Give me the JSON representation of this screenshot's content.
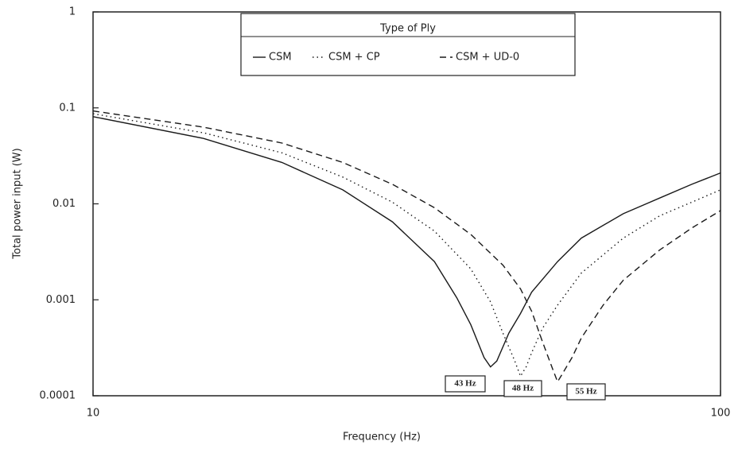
{
  "chart_data": {
    "type": "line",
    "xlabel": "Frequency (Hz)",
    "ylabel": "Total power input (W)",
    "xscale": "log",
    "yscale": "log",
    "xlim": [
      10,
      100
    ],
    "ylim": [
      0.0001,
      1
    ],
    "xticks": [
      10,
      100
    ],
    "yticks": [
      0.0001,
      0.001,
      0.01,
      0.1,
      1
    ],
    "legend_title": "Type of Ply",
    "legend": "upper center",
    "series": [
      {
        "name": "CSM",
        "color": "#1a1a1a",
        "style": "solid",
        "x": [
          10,
          15,
          20,
          25,
          30,
          35,
          38,
          40,
          42,
          43,
          44,
          46,
          48,
          50,
          55,
          60,
          70,
          80,
          90,
          100
        ],
        "values": [
          0.081,
          0.048,
          0.027,
          0.014,
          0.0065,
          0.0025,
          0.00105,
          0.00055,
          0.00025,
          0.0002,
          0.00023,
          0.00045,
          0.00072,
          0.0012,
          0.0025,
          0.0044,
          0.0079,
          0.0115,
          0.016,
          0.021
        ]
      },
      {
        "name": "CSM + CP",
        "color": "#1a1a1a",
        "style": "dotted",
        "x": [
          10,
          15,
          20,
          25,
          30,
          35,
          40,
          43,
          45,
          47,
          48,
          49,
          50,
          52,
          55,
          60,
          70,
          80,
          90,
          100
        ],
        "values": [
          0.087,
          0.055,
          0.034,
          0.019,
          0.0104,
          0.0052,
          0.0021,
          0.00095,
          0.00045,
          0.00023,
          0.00016,
          0.0002,
          0.00028,
          0.0005,
          0.00088,
          0.0019,
          0.0044,
          0.0075,
          0.0104,
          0.014
        ]
      },
      {
        "name": "CSM + UD-0",
        "color": "#1a1a1a",
        "style": "dashed",
        "x": [
          10,
          15,
          20,
          25,
          30,
          35,
          40,
          45,
          48,
          50,
          52,
          54,
          55,
          56,
          58,
          60,
          65,
          70,
          80,
          90,
          100
        ],
        "values": [
          0.093,
          0.063,
          0.043,
          0.027,
          0.016,
          0.0091,
          0.0048,
          0.0023,
          0.0013,
          0.00076,
          0.00037,
          0.00019,
          0.00014,
          0.00017,
          0.00025,
          0.0004,
          0.00088,
          0.0016,
          0.0033,
          0.0056,
          0.0085
        ]
      }
    ],
    "annotations": [
      "43 Hz",
      "48 Hz",
      "55 Hz"
    ]
  }
}
